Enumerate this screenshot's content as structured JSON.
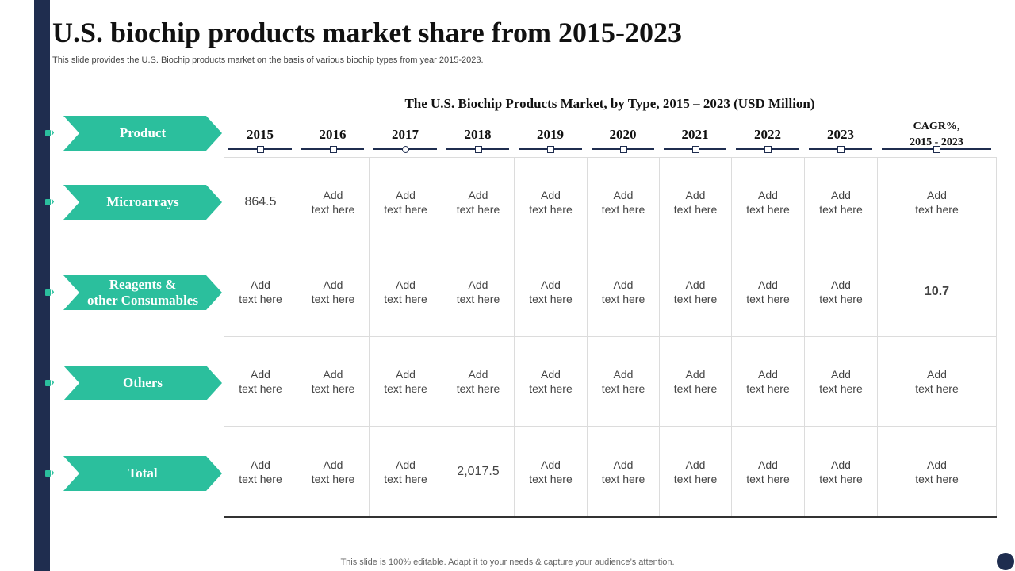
{
  "title": "U.S. biochip products market share from 2015-2023",
  "subtitle": "This slide provides the U.S. Biochip products market on the basis of various biochip types from year 2015-2023.",
  "table": {
    "title": "The U.S. Biochip Products Market, by Type, 2015 – 2023 (USD Million)",
    "header_label": "Product",
    "columns": [
      "2015",
      "2016",
      "2017",
      "2018",
      "2019",
      "2020",
      "2021",
      "2022",
      "2023"
    ],
    "cagr_header": {
      "line1": "CAGR%,",
      "line2": "2015 - 2023"
    },
    "rows": [
      {
        "label": "Microarrays",
        "cells": [
          "864.5",
          "Add\ntext here",
          "Add\ntext here",
          "Add\ntext here",
          "Add\ntext here",
          "Add\ntext here",
          "Add\ntext here",
          "Add\ntext here",
          "Add\ntext here",
          "Add\ntext here"
        ]
      },
      {
        "label": "Reagents &\nother Consumables",
        "cells": [
          "Add\ntext here",
          "Add\ntext here",
          "Add\ntext here",
          "Add\ntext here",
          "Add\ntext here",
          "Add\ntext here",
          "Add\ntext here",
          "Add\ntext here",
          "Add\ntext here",
          "10.7"
        ]
      },
      {
        "label": "Others",
        "cells": [
          "Add\ntext here",
          "Add\ntext here",
          "Add\ntext here",
          "Add\ntext here",
          "Add\ntext here",
          "Add\ntext here",
          "Add\ntext here",
          "Add\ntext here",
          "Add\ntext here",
          "Add\ntext here"
        ]
      },
      {
        "label": "Total",
        "cells": [
          "Add\ntext here",
          "Add\ntext here",
          "Add\ntext here",
          "2,017.5",
          "Add\ntext here",
          "Add\ntext here",
          "Add\ntext here",
          "Add\ntext here",
          "Add\ntext here",
          "Add\ntext here"
        ]
      }
    ]
  },
  "footer": "This slide is 100% editable. Adapt it to your needs & capture your audience’s attention.",
  "colors": {
    "navy": "#1f2d4f",
    "teal": "#2bbf9d"
  }
}
